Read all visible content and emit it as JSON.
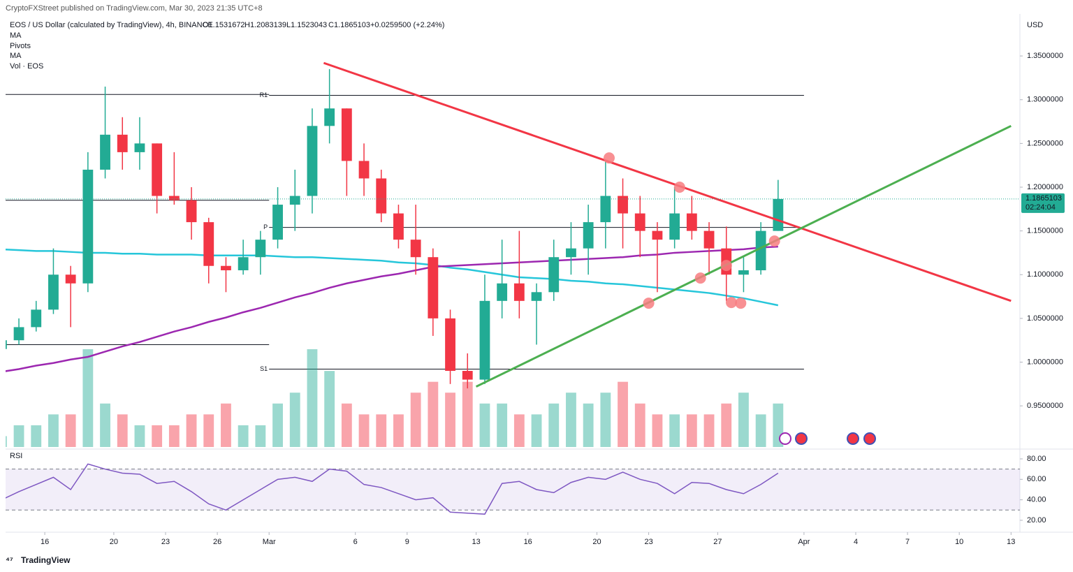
{
  "header": {
    "publisher": "CryptoFXStreet published on TradingView.com, Mar 30, 2023 21:35 UTC+8",
    "symbol": "EOS / US Dollar (calculated by TradingView), 4h, BINANCE",
    "ohlc": [
      "O1.1531672",
      "H1.2083139",
      "L1.1523043",
      "C1.1865103"
    ],
    "change": "+0.0259500 (+2.24%)",
    "currency": "USD",
    "brand": "TradingView"
  },
  "chart_data": {
    "type": "candlestick",
    "x": [
      "2023-02-13",
      "2023-02-14",
      "2023-02-15",
      "2023-02-16",
      "2023-02-17",
      "2023-02-18",
      "2023-02-19",
      "2023-02-20",
      "2023-02-21",
      "2023-02-22",
      "2023-02-23",
      "2023-02-24",
      "2023-02-25",
      "2023-02-26",
      "2023-02-27",
      "2023-02-28",
      "2023-03-01",
      "2023-03-02",
      "2023-03-03",
      "2023-03-04",
      "2023-03-05",
      "2023-03-06",
      "2023-03-07",
      "2023-03-08",
      "2023-03-09",
      "2023-03-10",
      "2023-03-11",
      "2023-03-12",
      "2023-03-13",
      "2023-03-14",
      "2023-03-15",
      "2023-03-16",
      "2023-03-17",
      "2023-03-18",
      "2023-03-19",
      "2023-03-20",
      "2023-03-21",
      "2023-03-22",
      "2023-03-23",
      "2023-03-24",
      "2023-03-25",
      "2023-03-26",
      "2023-03-27",
      "2023-03-28",
      "2023-03-29",
      "2023-03-30"
    ],
    "open": [
      1.015,
      1.025,
      1.04,
      1.06,
      1.1,
      1.09,
      1.22,
      1.26,
      1.24,
      1.25,
      1.19,
      1.185,
      1.16,
      1.11,
      1.105,
      1.12,
      1.14,
      1.18,
      1.19,
      1.27,
      1.29,
      1.23,
      1.21,
      1.17,
      1.14,
      1.12,
      1.05,
      0.99,
      0.98,
      1.07,
      1.09,
      1.07,
      1.08,
      1.12,
      1.13,
      1.16,
      1.19,
      1.17,
      1.15,
      1.14,
      1.17,
      1.15,
      1.13,
      1.1,
      1.105,
      1.15
    ],
    "high": [
      1.03,
      1.05,
      1.07,
      1.13,
      1.11,
      1.24,
      1.315,
      1.28,
      1.28,
      1.25,
      1.24,
      1.2,
      1.165,
      1.12,
      1.14,
      1.15,
      1.2,
      1.22,
      1.29,
      1.335,
      1.29,
      1.25,
      1.22,
      1.18,
      1.18,
      1.13,
      1.06,
      1.01,
      1.1,
      1.14,
      1.15,
      1.09,
      1.14,
      1.16,
      1.18,
      1.23,
      1.21,
      1.19,
      1.16,
      1.2,
      1.19,
      1.16,
      1.155,
      1.12,
      1.16,
      1.2083139
    ],
    "low": [
      1.005,
      1.02,
      1.035,
      1.055,
      1.04,
      1.08,
      1.21,
      1.22,
      1.22,
      1.17,
      1.18,
      1.14,
      1.09,
      1.08,
      1.1,
      1.1,
      1.13,
      1.15,
      1.17,
      1.25,
      1.19,
      1.19,
      1.16,
      1.13,
      1.1,
      1.03,
      0.975,
      0.97,
      0.975,
      1.05,
      1.05,
      1.02,
      1.07,
      1.1,
      1.1,
      1.13,
      1.13,
      1.12,
      1.08,
      1.13,
      1.14,
      1.1,
      1.07,
      1.08,
      1.1,
      1.15
    ],
    "close": [
      1.025,
      1.04,
      1.06,
      1.1,
      1.09,
      1.22,
      1.26,
      1.24,
      1.25,
      1.19,
      1.185,
      1.16,
      1.11,
      1.105,
      1.12,
      1.14,
      1.18,
      1.19,
      1.27,
      1.29,
      1.23,
      1.21,
      1.17,
      1.14,
      1.12,
      1.05,
      0.99,
      0.98,
      1.07,
      1.09,
      1.07,
      1.08,
      1.12,
      1.13,
      1.16,
      1.19,
      1.17,
      1.15,
      1.14,
      1.17,
      1.15,
      1.13,
      1.1,
      1.105,
      1.15,
      1.1865103
    ],
    "volume_name": "Vol · EOS",
    "volume": [
      1,
      2,
      2,
      3,
      3,
      9,
      4,
      3,
      2,
      2,
      2,
      3,
      3,
      4,
      2,
      2,
      4,
      5,
      9,
      7,
      4,
      3,
      3,
      3,
      5,
      6,
      5,
      6,
      4,
      4,
      3,
      3,
      4,
      5,
      4,
      5,
      6,
      4,
      3,
      3,
      3,
      3,
      4,
      5,
      3,
      4
    ],
    "up_color": "#22ab94",
    "down_color": "#f23645",
    "xlim": [
      "2023-02-13",
      "2023-04-14"
    ],
    "xticks": [
      {
        "value": "2023-02-16",
        "label": "16"
      },
      {
        "value": "2023-02-20",
        "label": "20"
      },
      {
        "value": "2023-02-23",
        "label": "23"
      },
      {
        "value": "2023-02-26",
        "label": "26"
      },
      {
        "value": "2023-03-01",
        "label": "Mar"
      },
      {
        "value": "2023-03-06",
        "label": "6"
      },
      {
        "value": "2023-03-09",
        "label": "9"
      },
      {
        "value": "2023-03-13",
        "label": "13"
      },
      {
        "value": "2023-03-16",
        "label": "16"
      },
      {
        "value": "2023-03-20",
        "label": "20"
      },
      {
        "value": "2023-03-23",
        "label": "23"
      },
      {
        "value": "2023-03-27",
        "label": "27"
      },
      {
        "value": "2023-04-01",
        "label": "Apr"
      },
      {
        "value": "2023-04-04",
        "label": "4"
      },
      {
        "value": "2023-04-07",
        "label": "7"
      },
      {
        "value": "2023-04-10",
        "label": "10"
      },
      {
        "value": "2023-04-13",
        "label": "13"
      }
    ],
    "ylim": [
      0.903,
      1.398
    ],
    "yticks": [
      {
        "value": 0.95,
        "label": "0.9500000"
      },
      {
        "value": 1.0,
        "label": "1.0000000"
      },
      {
        "value": 1.05,
        "label": "1.0500000"
      },
      {
        "value": 1.1,
        "label": "1.1000000"
      },
      {
        "value": 1.15,
        "label": "1.1500000"
      },
      {
        "value": 1.2,
        "label": "1.2000000"
      },
      {
        "value": 1.25,
        "label": "1.2500000"
      },
      {
        "value": 1.3,
        "label": "1.3000000"
      },
      {
        "value": 1.35,
        "label": "1.3500000"
      }
    ],
    "last_price": {
      "value": 1.1865103,
      "label": "1.1865103"
    },
    "countdown": "02:24:04",
    "moving_averages": [
      {
        "name": "MA",
        "color": "#26c6da",
        "values": [
          1.129,
          1.128,
          1.127,
          1.127,
          1.126,
          1.125,
          1.125,
          1.124,
          1.124,
          1.123,
          1.123,
          1.123,
          1.122,
          1.122,
          1.122,
          1.122,
          1.121,
          1.12,
          1.12,
          1.119,
          1.118,
          1.117,
          1.116,
          1.114,
          1.113,
          1.111,
          1.108,
          1.106,
          1.103,
          1.1,
          1.097,
          1.096,
          1.095,
          1.093,
          1.092,
          1.09,
          1.089,
          1.087,
          1.085,
          1.083,
          1.081,
          1.079,
          1.076,
          1.073,
          1.069,
          1.065
        ]
      },
      {
        "name": "MA",
        "color": "#9c27b0",
        "values": [
          0.989,
          0.992,
          0.996,
          0.999,
          1.003,
          1.006,
          1.012,
          1.018,
          1.023,
          1.029,
          1.035,
          1.04,
          1.046,
          1.051,
          1.057,
          1.062,
          1.068,
          1.074,
          1.079,
          1.085,
          1.09,
          1.094,
          1.098,
          1.101,
          1.105,
          1.109,
          1.11,
          1.111,
          1.112,
          1.113,
          1.114,
          1.115,
          1.116,
          1.117,
          1.118,
          1.119,
          1.12,
          1.122,
          1.123,
          1.125,
          1.126,
          1.127,
          1.128,
          1.129,
          1.131,
          1.132
        ]
      }
    ],
    "pivots_name": "Pivots",
    "pivot_periods": [
      {
        "from": "2023-02-13",
        "to": "2023-03-01",
        "levels": [
          1.306,
          1.185,
          1.02
        ]
      },
      {
        "from": "2023-03-01",
        "to": "2023-04-01",
        "levels": [
          1.305,
          1.154,
          0.992
        ],
        "labels": [
          "R1",
          "P",
          "S1"
        ]
      }
    ],
    "trendlines": [
      {
        "color": "#f23645",
        "points": [
          [
            "2023-03-04T04:00",
            1.342
          ],
          [
            "2023-04-13",
            1.07
          ]
        ]
      },
      {
        "color": "#4caf50",
        "points": [
          [
            "2023-03-13",
            0.972
          ],
          [
            "2023-04-13",
            1.27
          ]
        ]
      }
    ],
    "highlight_color": "#f77c80",
    "highlights": [
      [
        "2023-03-20T17:00",
        1.2334
      ],
      [
        "2023-03-24T19:00",
        1.2
      ],
      [
        "2023-03-23T00:00",
        1.0674
      ],
      [
        "2023-03-26T00:00",
        1.0961
      ],
      [
        "2023-03-27T12:00",
        1.1105
      ],
      [
        "2023-03-27T19:00",
        1.0682
      ],
      [
        "2023-03-28T08:00",
        1.0674
      ],
      [
        "2023-03-30T07:00",
        1.1384
      ]
    ],
    "rsi": {
      "name": "RSI",
      "color": "#7e57c2",
      "values": [
        40,
        48,
        55,
        62,
        50,
        75,
        70,
        66,
        65,
        56,
        58,
        48,
        36,
        30,
        40,
        50,
        60,
        62,
        58,
        70,
        68,
        55,
        52,
        46,
        40,
        42,
        28,
        27,
        26,
        56,
        58,
        50,
        47,
        57,
        62,
        60,
        67,
        60,
        56,
        46,
        57,
        56,
        50,
        46,
        55,
        66
      ],
      "ylim": [
        11.1,
        88.2
      ],
      "bands": [
        30,
        70
      ],
      "yticks": [
        {
          "value": 20,
          "label": "20.00"
        },
        {
          "value": 40,
          "label": "40.00"
        },
        {
          "value": 60,
          "label": "60.00"
        },
        {
          "value": 80,
          "label": "80.00"
        }
      ]
    }
  }
}
